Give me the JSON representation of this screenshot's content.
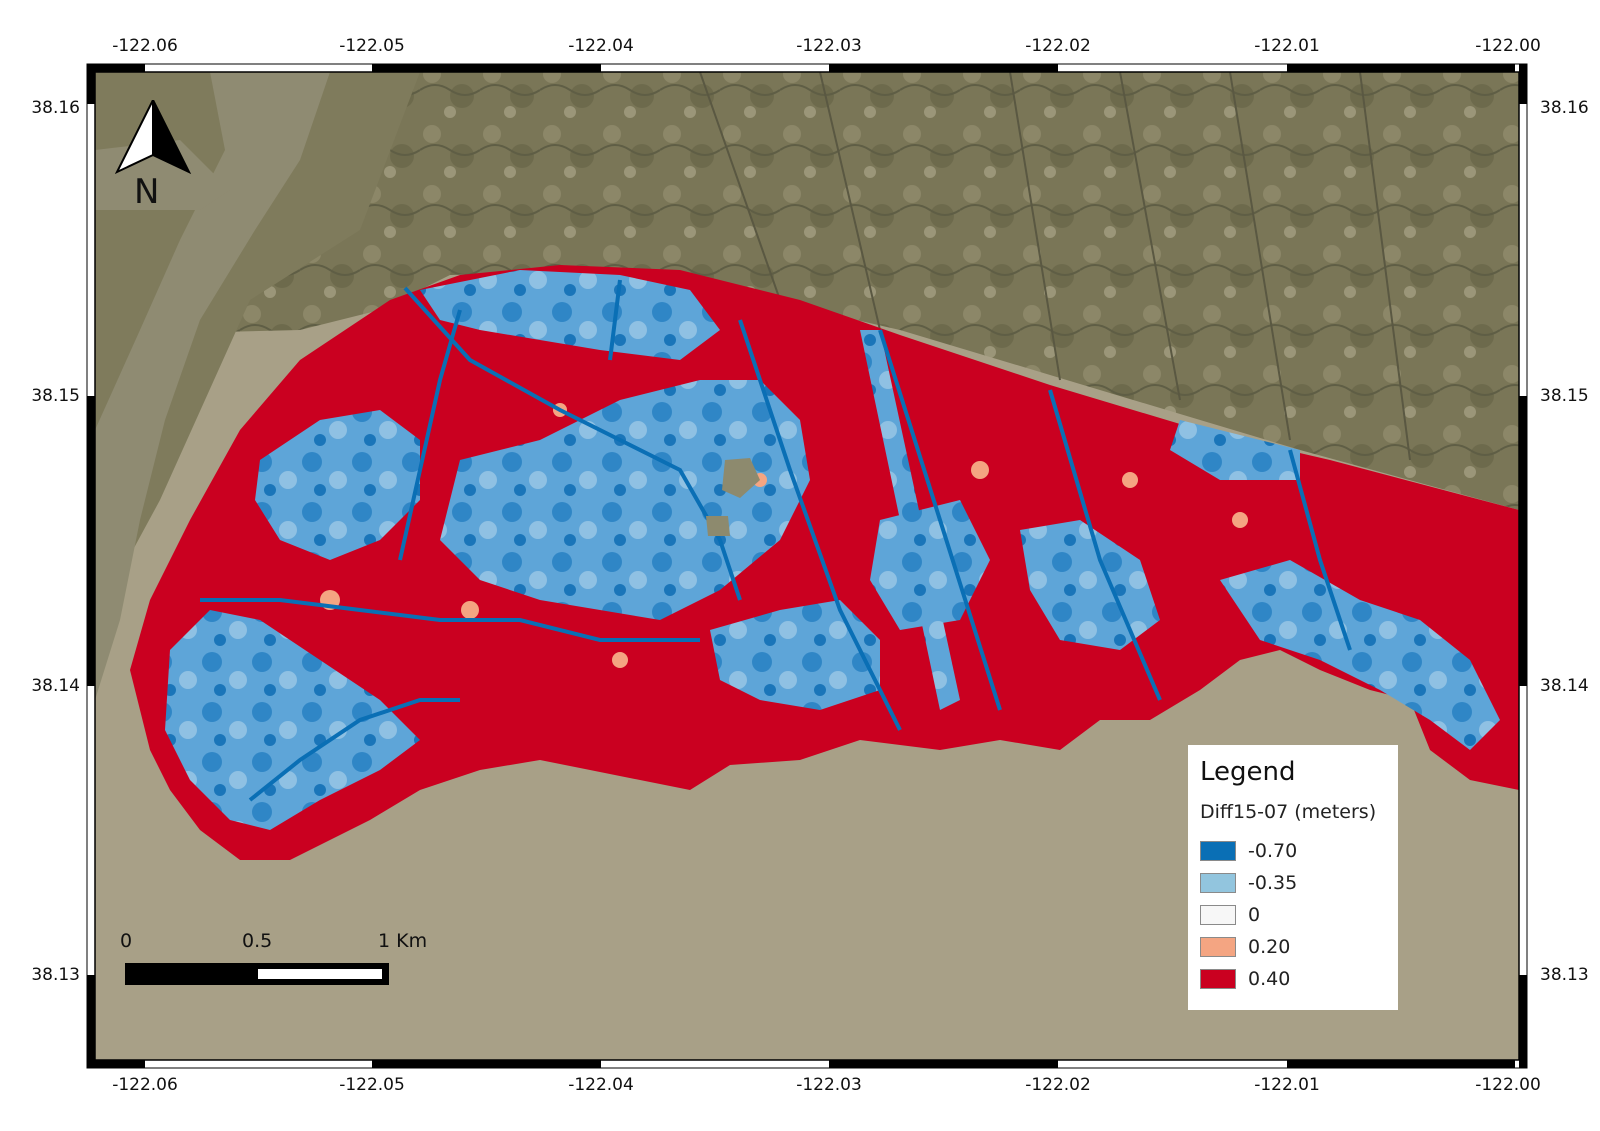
{
  "map": {
    "longitude_ticks": [
      "-122.06",
      "-122.05",
      "-122.04",
      "-122.03",
      "-122.02",
      "-122.01",
      "-122.00"
    ],
    "latitude_ticks": [
      "38.16",
      "38.15",
      "38.14",
      "38.13"
    ]
  },
  "legend": {
    "title": "Legend",
    "layer": "Diff15-07 (meters)",
    "items": [
      {
        "label": "-0.70",
        "color": "#0a6fb5"
      },
      {
        "label": "-0.35",
        "color": "#92c5de"
      },
      {
        "label": "0",
        "color": "#f7f7f7"
      },
      {
        "label": "0.20",
        "color": "#f4a582"
      },
      {
        "label": "0.40",
        "color": "#ca0020"
      }
    ]
  },
  "north_arrow": {
    "label": "N",
    "icon": "north-arrow-icon"
  },
  "scale_bar": {
    "labels": [
      "0",
      "0.5",
      "1 Km"
    ]
  },
  "colors": {
    "water": "#a8a087",
    "marsh": "#7d7a5a",
    "river": "#8f8b72",
    "frame": "#000000"
  }
}
